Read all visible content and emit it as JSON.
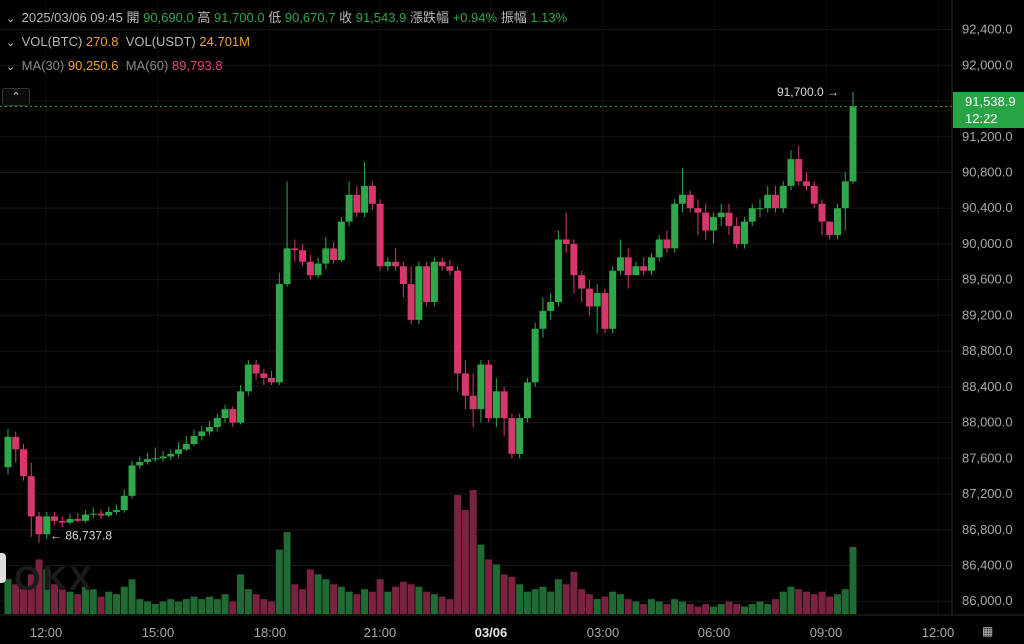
{
  "header": {
    "datetime": "2025/03/06 09:45",
    "open_label": "開",
    "open_value": "90,690.0",
    "high_label": "高",
    "high_value": "91,700.0",
    "low_label": "低",
    "low_value": "90,670.7",
    "close_label": "收",
    "close_value": "91,543.9",
    "change_label": "漲跌幅",
    "change_value": "+0.94%",
    "amplitude_label": "振幅",
    "amplitude_value": "1.13%"
  },
  "volume_row": {
    "btc_label": "VOL(BTC)",
    "btc_value": "270.8",
    "usdt_label": "VOL(USDT)",
    "usdt_value": "24.701M"
  },
  "ma_row": {
    "ma30_label": "MA(30)",
    "ma30_value": "90,250.6",
    "ma60_label": "MA(60)",
    "ma60_value": "89,793.8"
  },
  "price_tag": {
    "price": "91,538.9",
    "countdown": "12:22"
  },
  "colors": {
    "up": "#2ea84a",
    "down": "#d6386c",
    "vol_up": "#1f6b33",
    "vol_down": "#7a2240",
    "ma30": "#f0a030",
    "ma60": "#e0457b"
  },
  "chart_data": {
    "type": "candlestick",
    "y_axis": {
      "ticks": [
        "92,400.0",
        "92,000.0",
        "91,600.0",
        "91,200.0",
        "90,800.0",
        "90,400.0",
        "90,000.0",
        "89,600.0",
        "89,200.0",
        "88,800.0",
        "88,400.0",
        "88,000.0",
        "87,600.0",
        "87,200.0",
        "86,800.0",
        "86,400.0",
        "86,000.0"
      ],
      "min": 85980,
      "max": 92440
    },
    "x_axis": {
      "labels": [
        "12:00",
        "15:00",
        "18:00",
        "21:00",
        "03/06",
        "03:00",
        "06:00",
        "09:00",
        "12:00"
      ],
      "bold_label": "03/06"
    },
    "high_annotation": "91,700.0",
    "low_annotation": "86,737.8",
    "current_price": 91538.9,
    "volume_max": 50,
    "candles": [
      [
        87500,
        87840,
        87930,
        87420,
        14
      ],
      [
        87840,
        87700,
        87900,
        87550,
        12
      ],
      [
        87700,
        87400,
        87760,
        87350,
        10
      ],
      [
        87400,
        86950,
        87550,
        86720,
        16
      ],
      [
        86950,
        86750,
        87000,
        86650,
        22
      ],
      [
        86750,
        86950,
        87000,
        86700,
        18
      ],
      [
        86950,
        86900,
        87000,
        86850,
        12
      ],
      [
        86900,
        86880,
        86950,
        86830,
        10
      ],
      [
        86880,
        86920,
        86980,
        86860,
        9
      ],
      [
        86920,
        86900,
        86990,
        86880,
        8
      ],
      [
        86900,
        86970,
        87020,
        86880,
        11
      ],
      [
        86970,
        86980,
        87050,
        86930,
        10
      ],
      [
        86980,
        86960,
        87030,
        86920,
        7
      ],
      [
        86960,
        87000,
        87060,
        86940,
        9
      ],
      [
        87000,
        87020,
        87080,
        86970,
        8
      ],
      [
        87020,
        87180,
        87250,
        86990,
        11
      ],
      [
        87180,
        87520,
        87570,
        87150,
        14
      ],
      [
        87520,
        87560,
        87620,
        87480,
        6
      ],
      [
        87560,
        87590,
        87660,
        87530,
        5
      ],
      [
        87590,
        87600,
        87720,
        87560,
        4
      ],
      [
        87600,
        87620,
        87680,
        87560,
        5
      ],
      [
        87620,
        87650,
        87700,
        87580,
        6
      ],
      [
        87650,
        87700,
        87780,
        87600,
        5
      ],
      [
        87700,
        87760,
        87850,
        87680,
        6
      ],
      [
        87760,
        87850,
        87920,
        87740,
        7
      ],
      [
        87850,
        87900,
        87960,
        87800,
        6
      ],
      [
        87900,
        87950,
        88020,
        87860,
        7
      ],
      [
        87950,
        88050,
        88100,
        87900,
        6
      ],
      [
        88050,
        88150,
        88200,
        88000,
        8
      ],
      [
        88150,
        88000,
        88180,
        87950,
        5
      ],
      [
        88000,
        88350,
        88420,
        87980,
        16
      ],
      [
        88350,
        88650,
        88700,
        88300,
        10
      ],
      [
        88650,
        88550,
        88700,
        88480,
        8
      ],
      [
        88550,
        88500,
        88600,
        88420,
        6
      ],
      [
        88500,
        88450,
        88580,
        88420,
        5
      ],
      [
        88450,
        89550,
        89680,
        88420,
        26
      ],
      [
        89550,
        89950,
        90700,
        89520,
        33
      ],
      [
        89950,
        89930,
        90050,
        89800,
        12
      ],
      [
        89930,
        89800,
        90000,
        89750,
        10
      ],
      [
        89800,
        89650,
        89880,
        89600,
        18
      ],
      [
        89650,
        89780,
        89850,
        89620,
        16
      ],
      [
        89780,
        89950,
        90080,
        89720,
        14
      ],
      [
        89950,
        89820,
        90020,
        89780,
        12
      ],
      [
        89820,
        90250,
        90300,
        89800,
        11
      ],
      [
        90250,
        90550,
        90700,
        90200,
        9
      ],
      [
        90550,
        90350,
        90650,
        90300,
        8
      ],
      [
        90350,
        90650,
        90920,
        90300,
        10
      ],
      [
        90650,
        90450,
        90700,
        90380,
        9
      ],
      [
        90450,
        89750,
        90500,
        89700,
        14
      ],
      [
        89750,
        89800,
        89850,
        89700,
        9
      ],
      [
        89800,
        89750,
        89950,
        89700,
        11
      ],
      [
        89750,
        89550,
        89800,
        89400,
        13
      ],
      [
        89550,
        89150,
        89750,
        89100,
        12
      ],
      [
        89150,
        89750,
        89800,
        89100,
        11
      ],
      [
        89750,
        89350,
        89800,
        89300,
        9
      ],
      [
        89350,
        89800,
        89850,
        89300,
        8
      ],
      [
        89800,
        89750,
        89850,
        89700,
        7
      ],
      [
        89750,
        89700,
        89820,
        89650,
        6
      ],
      [
        89700,
        88550,
        89750,
        88350,
        48
      ],
      [
        88550,
        88300,
        88700,
        88150,
        42
      ],
      [
        88300,
        88150,
        88550,
        87950,
        50
      ],
      [
        88150,
        88650,
        88700,
        88000,
        28
      ],
      [
        88650,
        88050,
        88700,
        88000,
        22
      ],
      [
        88050,
        88350,
        88500,
        87950,
        20
      ],
      [
        88350,
        88050,
        88400,
        87850,
        16
      ],
      [
        88050,
        87650,
        88100,
        87600,
        15
      ],
      [
        87650,
        88050,
        88100,
        87600,
        12
      ],
      [
        88050,
        88450,
        88500,
        88000,
        9
      ],
      [
        88450,
        89050,
        89120,
        88400,
        10
      ],
      [
        89050,
        89250,
        89400,
        88950,
        11
      ],
      [
        89250,
        89350,
        89450,
        89150,
        9
      ],
      [
        89350,
        90050,
        90150,
        89300,
        14
      ],
      [
        90050,
        90000,
        90350,
        89900,
        12
      ],
      [
        90000,
        89650,
        90050,
        89450,
        17
      ],
      [
        89650,
        89500,
        89700,
        89350,
        10
      ],
      [
        89500,
        89300,
        89600,
        89200,
        8
      ],
      [
        89300,
        89450,
        89550,
        89000,
        6
      ],
      [
        89450,
        89050,
        89500,
        89000,
        7
      ],
      [
        89050,
        89700,
        89750,
        89000,
        9
      ],
      [
        89700,
        89850,
        90050,
        89650,
        8
      ],
      [
        89850,
        89650,
        89950,
        89500,
        6
      ],
      [
        89650,
        89750,
        89800,
        89650,
        5
      ],
      [
        89750,
        89700,
        89850,
        89650,
        4
      ],
      [
        89700,
        89850,
        89900,
        89650,
        6
      ],
      [
        89850,
        90050,
        90100,
        89800,
        5
      ],
      [
        90050,
        89950,
        90150,
        89900,
        4
      ],
      [
        89950,
        90450,
        90500,
        89900,
        6
      ],
      [
        90450,
        90550,
        90850,
        90350,
        5
      ],
      [
        90550,
        90400,
        90600,
        90350,
        4
      ],
      [
        90400,
        90350,
        90500,
        90100,
        3
      ],
      [
        90350,
        90150,
        90450,
        90050,
        4
      ],
      [
        90150,
        90300,
        90350,
        90000,
        3
      ],
      [
        90300,
        90350,
        90450,
        90200,
        4
      ],
      [
        90350,
        90200,
        90450,
        90100,
        5
      ],
      [
        90200,
        90000,
        90300,
        89950,
        4
      ],
      [
        90000,
        90250,
        90300,
        89950,
        3
      ],
      [
        90250,
        90400,
        90450,
        90200,
        4
      ],
      [
        90400,
        90400,
        90500,
        90300,
        5
      ],
      [
        90400,
        90550,
        90650,
        90350,
        4
      ],
      [
        90550,
        90400,
        90650,
        90350,
        6
      ],
      [
        90400,
        90650,
        90700,
        90350,
        9
      ],
      [
        90650,
        90950,
        91050,
        90600,
        11
      ],
      [
        90950,
        90700,
        91100,
        90650,
        10
      ],
      [
        90700,
        90650,
        90800,
        90600,
        9
      ],
      [
        90650,
        90450,
        90700,
        90400,
        8
      ],
      [
        90450,
        90250,
        90500,
        90100,
        9
      ],
      [
        90250,
        90100,
        90250,
        90050,
        7
      ],
      [
        90100,
        90400,
        90450,
        90050,
        8
      ],
      [
        90400,
        90700,
        90800,
        90150,
        10
      ],
      [
        90700,
        91540,
        91700,
        90670,
        27
      ]
    ]
  }
}
